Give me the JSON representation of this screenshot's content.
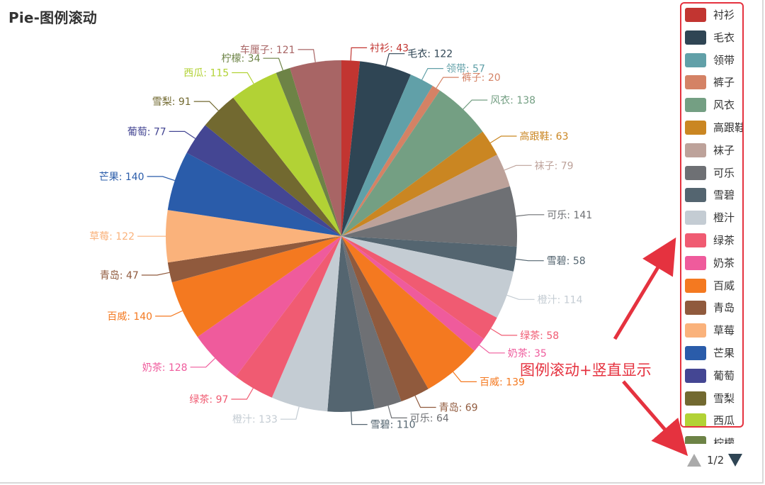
{
  "title": "Pie-图例滚动",
  "annotation": "图例滚动+竖直显示",
  "pager": {
    "text": "1/2"
  },
  "legend": {
    "items": [
      {
        "label": "衬衫",
        "color": "#c23531"
      },
      {
        "label": "毛衣",
        "color": "#2f4554"
      },
      {
        "label": "领带",
        "color": "#61a0a8"
      },
      {
        "label": "裤子",
        "color": "#d48265"
      },
      {
        "label": "风衣",
        "color": "#749f83"
      },
      {
        "label": "高跟鞋",
        "color": "#ca8622"
      },
      {
        "label": "袜子",
        "color": "#bda29a"
      },
      {
        "label": "可乐",
        "color": "#6e7074"
      },
      {
        "label": "雪碧",
        "color": "#546570"
      },
      {
        "label": "橙汁",
        "color": "#c4ccd3"
      },
      {
        "label": "绿茶",
        "color": "#f05b72"
      },
      {
        "label": "奶茶",
        "color": "#ef5b9c"
      },
      {
        "label": "百威",
        "color": "#f47920"
      },
      {
        "label": "青岛",
        "color": "#905a3d"
      },
      {
        "label": "草莓",
        "color": "#fab27b"
      },
      {
        "label": "芒果",
        "color": "#2a5caa"
      },
      {
        "label": "葡萄",
        "color": "#444693"
      },
      {
        "label": "雪梨",
        "color": "#726930"
      },
      {
        "label": "西瓜",
        "color": "#b2d235"
      },
      {
        "label": "柠檬",
        "color": "#6d8346"
      }
    ]
  },
  "chart_data": {
    "type": "pie",
    "legend_position": "right",
    "slices": [
      {
        "name": "衬衫",
        "value": 43,
        "color": "#c23531"
      },
      {
        "name": "毛衣",
        "value": 122,
        "color": "#2f4554"
      },
      {
        "name": "领带",
        "value": 57,
        "color": "#61a0a8"
      },
      {
        "name": "裤子",
        "value": 20,
        "color": "#d48265"
      },
      {
        "name": "风衣",
        "value": 138,
        "color": "#749f83"
      },
      {
        "name": "高跟鞋",
        "value": 63,
        "color": "#ca8622"
      },
      {
        "name": "袜子",
        "value": 79,
        "color": "#bda29a"
      },
      {
        "name": "可乐",
        "value": 141,
        "color": "#6e7074"
      },
      {
        "name": "雪碧",
        "value": 58,
        "color": "#546570"
      },
      {
        "name": "橙汁",
        "value": 114,
        "color": "#c4ccd3"
      },
      {
        "name": "绿茶",
        "value": 58,
        "color": "#f05b72"
      },
      {
        "name": "奶茶",
        "value": 35,
        "color": "#ef5b9c"
      },
      {
        "name": "百威",
        "value": 139,
        "color": "#f47920"
      },
      {
        "name": "青岛",
        "value": 69,
        "color": "#905a3d"
      },
      {
        "name": "可乐",
        "value": 64,
        "color": "#6e7074"
      },
      {
        "name": "雪碧",
        "value": 110,
        "color": "#546570"
      },
      {
        "name": "橙汁",
        "value": 133,
        "color": "#c4ccd3"
      },
      {
        "name": "绿茶",
        "value": 97,
        "color": "#f05b72"
      },
      {
        "name": "奶茶",
        "value": 128,
        "color": "#ef5b9c"
      },
      {
        "name": "百威",
        "value": 140,
        "color": "#f47920"
      },
      {
        "name": "青岛",
        "value": 47,
        "color": "#905a3d"
      },
      {
        "name": "草莓",
        "value": 122,
        "color": "#fab27b"
      },
      {
        "name": "芒果",
        "value": 140,
        "color": "#2a5caa"
      },
      {
        "name": "葡萄",
        "value": 77,
        "color": "#444693"
      },
      {
        "name": "雪梨",
        "value": 91,
        "color": "#726930"
      },
      {
        "name": "西瓜",
        "value": 115,
        "color": "#b2d235"
      },
      {
        "name": "柠檬",
        "value": 34,
        "color": "#6d8346"
      },
      {
        "name": "车厘子",
        "value": 121,
        "color": "#a86565"
      }
    ]
  }
}
